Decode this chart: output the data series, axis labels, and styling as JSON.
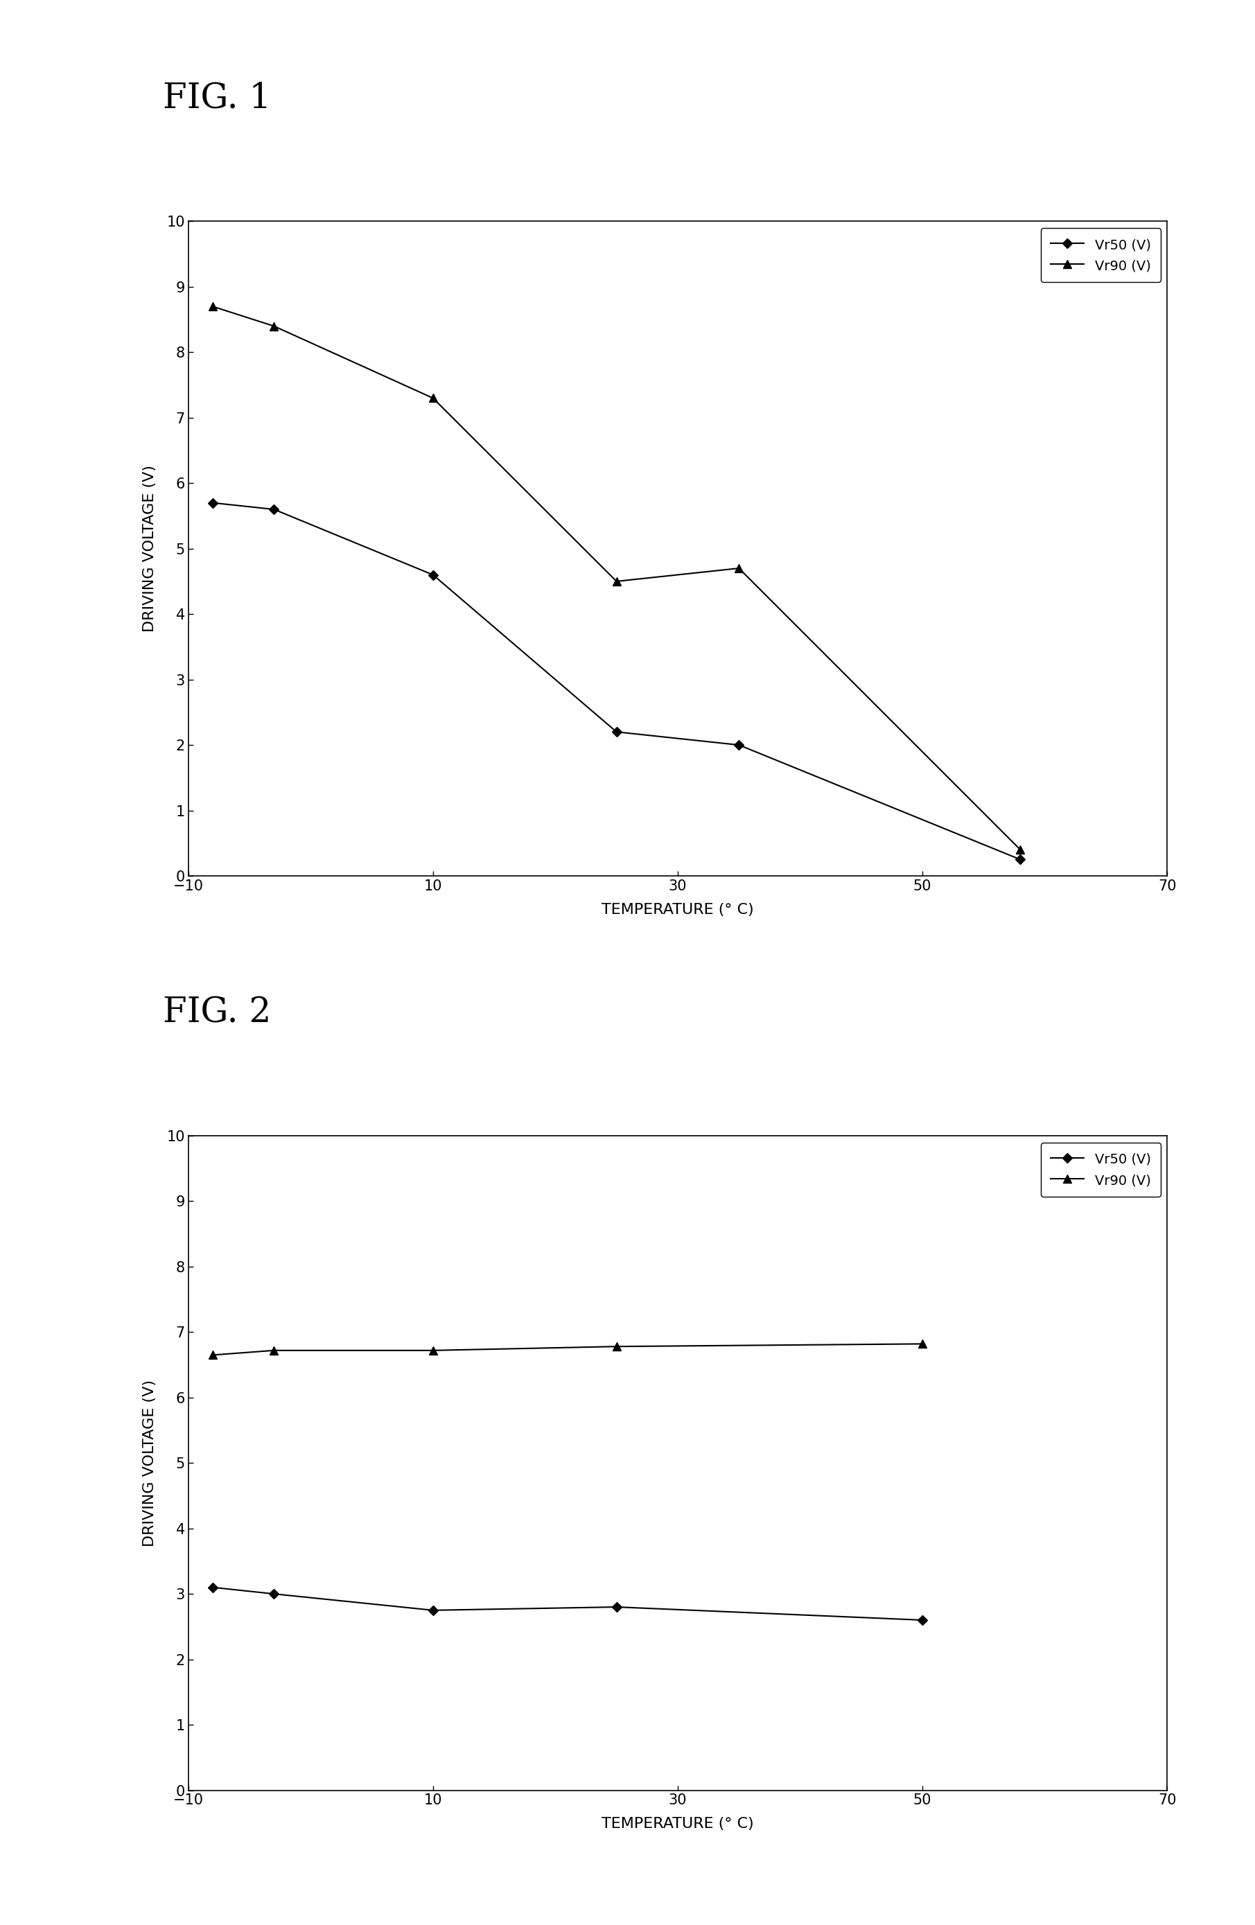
{
  "fig1_title": "FIG. 1",
  "fig2_title": "FIG. 2",
  "fig1_vr50_x": [
    -8,
    -3,
    10,
    25,
    35,
    58
  ],
  "fig1_vr50_y": [
    5.7,
    5.6,
    4.6,
    2.2,
    2.0,
    0.25
  ],
  "fig1_vr90_x": [
    -8,
    -3,
    10,
    25,
    35,
    58
  ],
  "fig1_vr90_y": [
    8.7,
    8.4,
    7.3,
    4.5,
    4.7,
    0.4
  ],
  "fig2_vr50_x": [
    -8,
    -3,
    10,
    25,
    50
  ],
  "fig2_vr50_y": [
    3.1,
    3.0,
    2.75,
    2.8,
    2.6
  ],
  "fig2_vr90_x": [
    -8,
    -3,
    10,
    25,
    50
  ],
  "fig2_vr90_y": [
    6.65,
    6.72,
    6.72,
    6.78,
    6.82
  ],
  "xlabel": "TEMPERATURE (° C)",
  "ylabel": "DRIVING VOLTAGE (V)",
  "xlim": [
    -10,
    70
  ],
  "ylim": [
    0,
    10
  ],
  "xticks": [
    -10,
    10,
    30,
    50,
    70
  ],
  "yticks": [
    0,
    1,
    2,
    3,
    4,
    5,
    6,
    7,
    8,
    9,
    10
  ],
  "legend_vr50": "Vr50 (V)",
  "legend_vr90": "Vr90 (V)",
  "line_color": "#000000",
  "marker_size": 7,
  "marker_fill": "#000000",
  "background_color": "#ffffff",
  "title_fontsize": 36,
  "label_fontsize": 16,
  "tick_fontsize": 15,
  "legend_fontsize": 14
}
